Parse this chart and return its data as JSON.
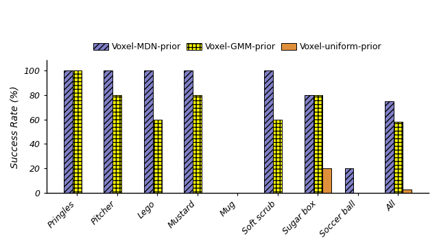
{
  "categories": [
    "Pringles",
    "Pitcher",
    "Lego",
    "Mustard",
    "Mug",
    "Soft scrub",
    "Sugar box",
    "Soccer ball",
    "All"
  ],
  "mdn_prior": [
    100,
    100,
    100,
    100,
    0,
    100,
    80,
    20,
    75
  ],
  "gmm_prior": [
    100,
    80,
    60,
    80,
    0,
    60,
    80,
    0,
    58
  ],
  "uniform_prior": [
    0,
    0,
    0,
    0,
    0,
    0,
    20,
    0,
    3
  ],
  "mdn_color": "#8080c8",
  "gmm_color": "#ffff00",
  "uniform_color": "#e0903a",
  "ylabel": "Success Rate (%)",
  "ylim": [
    0,
    108
  ],
  "yticks": [
    0,
    20,
    40,
    60,
    80,
    100
  ],
  "legend_labels": [
    "Voxel-MDN-prior",
    "Voxel-GMM-prior",
    "Voxel-uniform-prior"
  ],
  "bar_width": 0.22,
  "hatch_mdn": "////",
  "hatch_gmm": "+++",
  "hatch_uniform": ""
}
